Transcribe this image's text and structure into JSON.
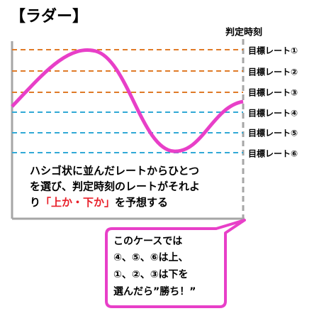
{
  "title": "【ラダー】",
  "judgment_time": "判定時刻",
  "target_rates": [
    "目標レート①",
    "目標レート②",
    "目標レート③",
    "目標レート④",
    "目標レート⑤",
    "目標レート⑥"
  ],
  "description": {
    "lines": [
      "ハシゴ状に並んだレートからひとつ",
      "を選び、判定時刻のレートがそれよ"
    ],
    "last_line": {
      "before": "り",
      "highlight": "「上か・下か」",
      "after": "を予想する"
    }
  },
  "callout": {
    "lines": [
      "このケースでは",
      "④、⑤、⑥は上、",
      "①、②、③は下を",
      "選んだら”勝ち！”"
    ]
  }
}
